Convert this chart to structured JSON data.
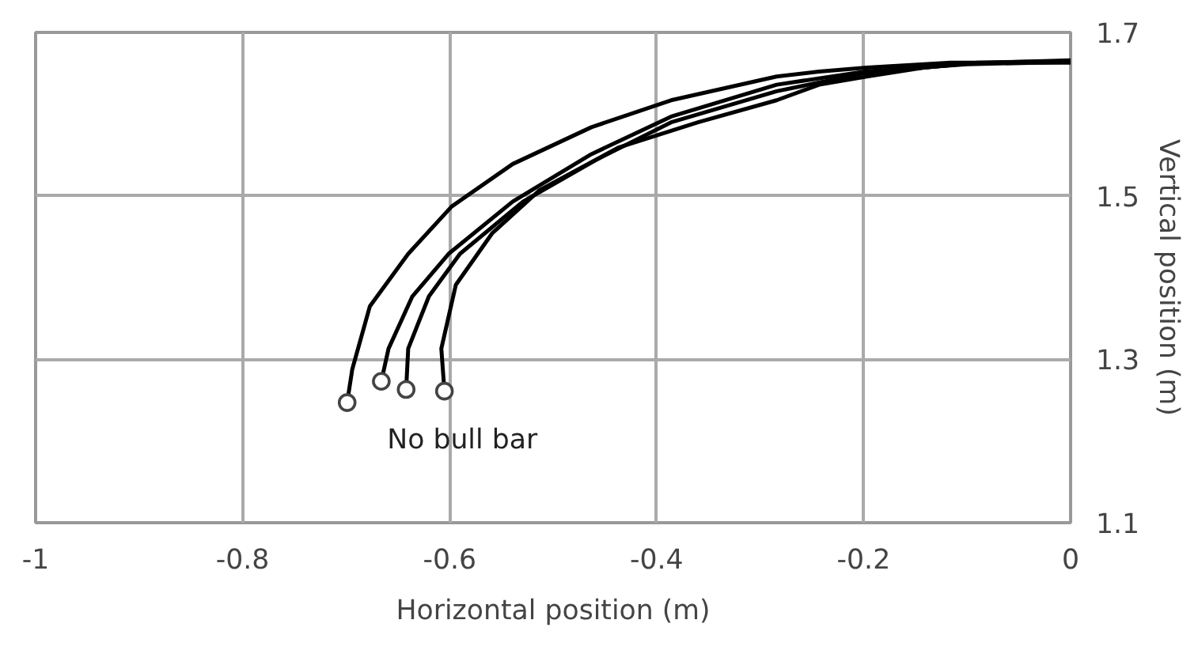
{
  "chart_data": {
    "type": "line",
    "xlabel": "Horizontal position (m)",
    "ylabel": "Vertical position (m)",
    "xlim": [
      -1,
      0
    ],
    "ylim": [
      1.1,
      1.7
    ],
    "xticks": [
      -1,
      -0.8,
      -0.6,
      -0.4,
      -0.2,
      0
    ],
    "yticks": [
      1.1,
      1.3,
      1.5,
      1.7
    ],
    "grid": true,
    "marker": "none",
    "line_style": "solid",
    "series": [
      {
        "color": "#000000",
        "x": [
          -0.699,
          -0.694,
          -0.677,
          -0.64,
          -0.598,
          -0.539,
          -0.463,
          -0.386,
          -0.284,
          -0.243,
          -0.197,
          -0.116,
          0
        ],
        "values": [
          1.247,
          1.288,
          1.365,
          1.429,
          1.487,
          1.539,
          1.584,
          1.617,
          1.646,
          1.652,
          1.657,
          1.663,
          1.663
        ]
      },
      {
        "color": "#000000",
        "x": [
          -0.666,
          -0.659,
          -0.636,
          -0.601,
          -0.539,
          -0.463,
          -0.386,
          -0.284,
          -0.2,
          -0.1,
          0
        ],
        "values": [
          1.273,
          1.313,
          1.377,
          1.429,
          1.493,
          1.551,
          1.597,
          1.636,
          1.652,
          1.661,
          1.664
        ]
      },
      {
        "color": "#000000",
        "x": [
          -0.642,
          -0.64,
          -0.62,
          -0.59,
          -0.529,
          -0.457,
          -0.386,
          -0.284,
          -0.2,
          -0.1,
          0
        ],
        "values": [
          1.263,
          1.313,
          1.377,
          1.429,
          1.493,
          1.545,
          1.59,
          1.628,
          1.65,
          1.662,
          1.666
        ]
      },
      {
        "color": "#000000",
        "x": [
          -0.605,
          -0.608,
          -0.594,
          -0.559,
          -0.513,
          -0.437,
          -0.36,
          -0.284,
          -0.243,
          -0.197,
          -0.142,
          -0.09,
          0
        ],
        "values": [
          1.261,
          1.313,
          1.391,
          1.454,
          1.507,
          1.559,
          1.59,
          1.617,
          1.636,
          1.646,
          1.657,
          1.663,
          1.665
        ]
      },
      {
        "type": "scatter",
        "marker": "circle",
        "color": "#444444",
        "x": [
          -0.699,
          -0.666,
          -0.642,
          -0.605
        ],
        "values": [
          1.247,
          1.273,
          1.263,
          1.261
        ]
      }
    ],
    "annotations": [
      {
        "text": "No bull bar",
        "x": -0.642,
        "y": 1.263
      }
    ]
  }
}
